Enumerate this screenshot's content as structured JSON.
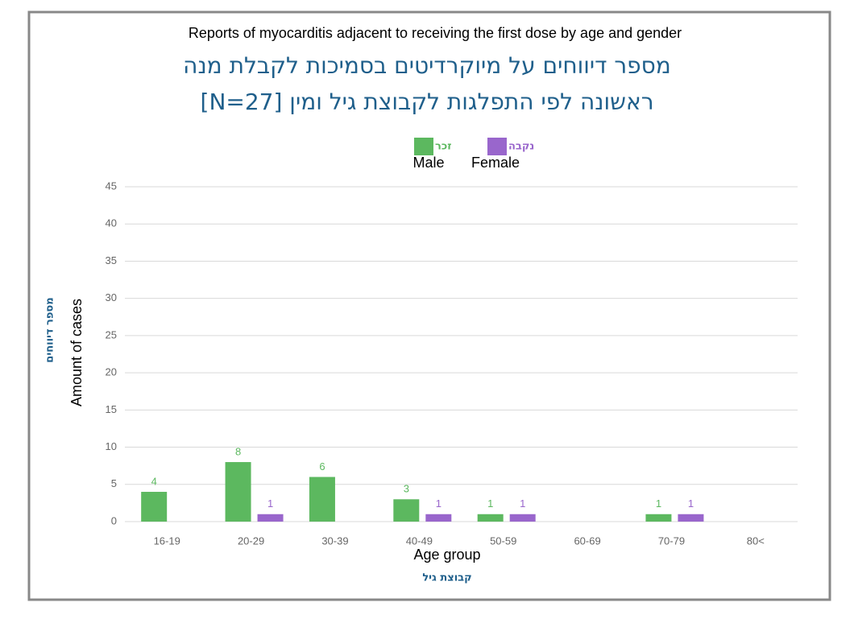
{
  "chart_data": {
    "type": "bar",
    "title_en": "Reports of myocarditis adjacent to receiving the first dose by age and gender",
    "title": [
      "מספר דיווחים על מיוקרדיטים בסמיכות לקבלת מנה",
      "ראשונה לפי התפלגות לקבוצת גיל ומין [N=27]"
    ],
    "categories": [
      "16-19",
      "20-29",
      "30-39",
      "40-49",
      "50-59",
      "60-69",
      "70-79",
      "80<"
    ],
    "series": [
      {
        "name": "זכר",
        "name_en": "Male",
        "color": "#5cb85f",
        "values": [
          4,
          8,
          6,
          3,
          1,
          null,
          1,
          null
        ]
      },
      {
        "name": "נקבה",
        "name_en": "Female",
        "color": "#9966cc",
        "values": [
          null,
          1,
          null,
          1,
          1,
          null,
          1,
          null
        ]
      }
    ],
    "ylim": [
      0,
      45
    ],
    "yticks": [
      0,
      5,
      10,
      15,
      20,
      25,
      30,
      35,
      40,
      45
    ],
    "grid": true,
    "ylabel": "מספר דיווחים",
    "ylabel_en": "Amount of cases",
    "xlabel": "קבוצת גיל",
    "xlabel_en": "Age group",
    "legend": "top"
  }
}
